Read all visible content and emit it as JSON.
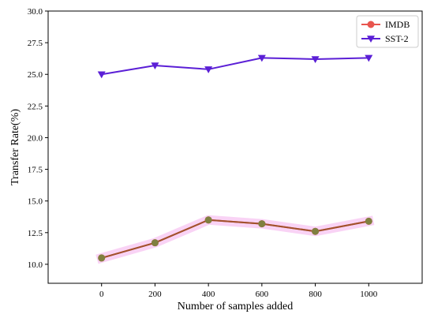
{
  "chart_data": {
    "type": "line",
    "xlabel": "Number of samples added",
    "ylabel": "Transfer Rate(%)",
    "x": [
      0,
      200,
      400,
      600,
      800,
      1000
    ],
    "xlim": [
      -200,
      1200
    ],
    "xticks": [
      0,
      200,
      400,
      600,
      800,
      1000
    ],
    "ylim": [
      8.5,
      30.0
    ],
    "yticks": [
      10.0,
      12.5,
      15.0,
      17.5,
      20.0,
      22.5,
      25.0,
      27.5,
      30.0
    ],
    "ytick_labels": [
      "10.0",
      "12.5",
      "15.0",
      "17.5",
      "20.0",
      "22.5",
      "25.0",
      "27.5",
      "30.0"
    ],
    "grid": false,
    "legend_position": "top-right",
    "series": [
      {
        "name": "IMDB",
        "values": [
          10.5,
          11.7,
          13.5,
          13.2,
          12.6,
          13.4
        ],
        "color": "#e8554e",
        "marker": "circle"
      },
      {
        "name": "SST-2",
        "values": [
          25.0,
          25.7,
          25.4,
          26.3,
          26.2,
          26.3
        ],
        "color": "#5b1fd6",
        "marker": "triangle-down"
      }
    ],
    "overlay": {
      "values": [
        10.5,
        11.7,
        13.5,
        13.2,
        12.6,
        13.4
      ],
      "line_color": "#a0522d",
      "marker_color": "#808040",
      "band_color": "#f7c8f2"
    }
  }
}
